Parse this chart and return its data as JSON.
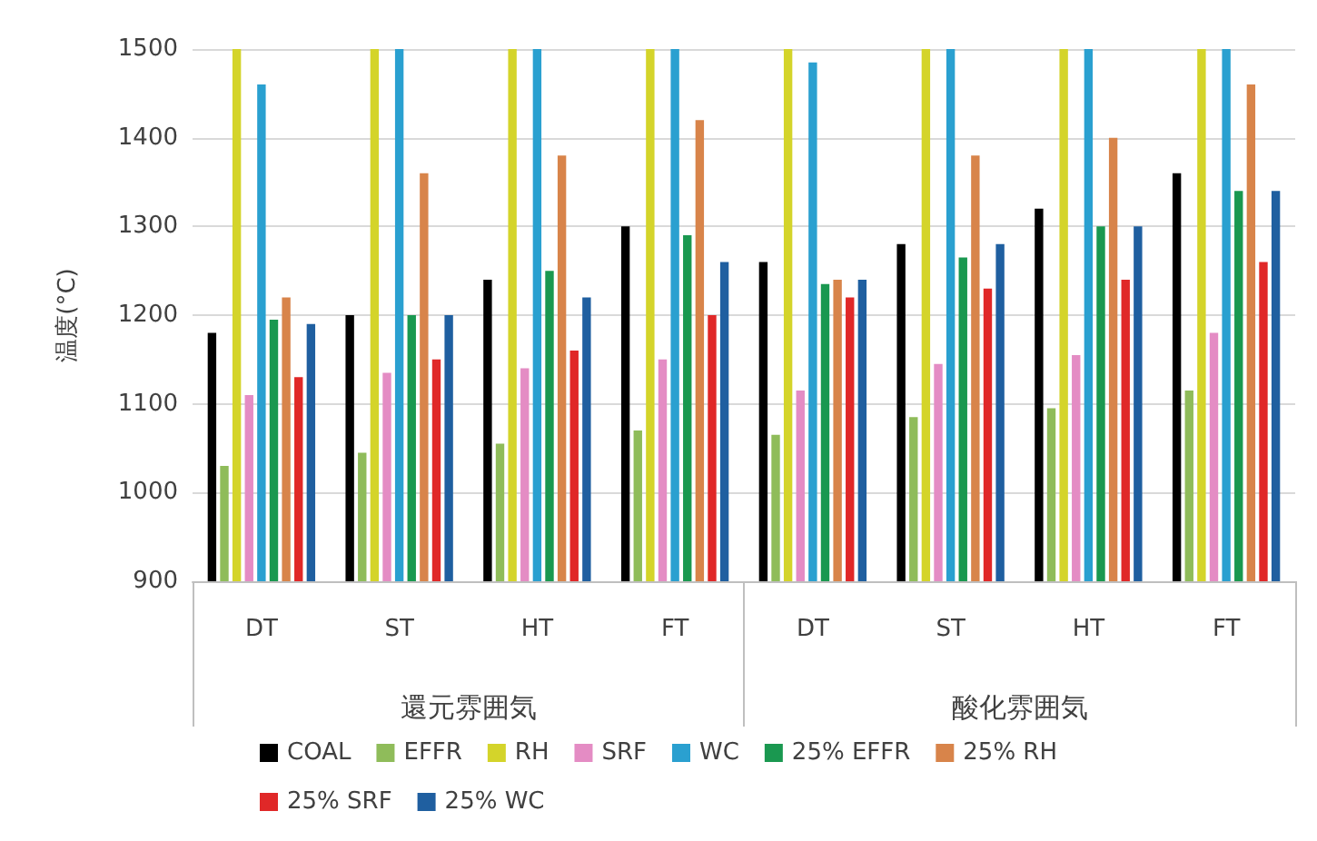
{
  "chart_data": {
    "type": "bar",
    "ylabel": "温度(°C)",
    "categories": [
      "DT",
      "ST",
      "HT",
      "FT",
      "DT",
      "ST",
      "HT",
      "FT"
    ],
    "annotations": [
      "還元雰囲気",
      "酸化雰囲気"
    ],
    "ylim": [
      900,
      1500
    ],
    "yticks": [
      900,
      1000,
      1100,
      1200,
      1300,
      1400,
      1500
    ],
    "grid": "y",
    "legend": "bottom",
    "series": [
      {
        "name": "COAL",
        "color": "#000000",
        "values": [
          1180,
          1200,
          1240,
          1300,
          1260,
          1280,
          1320,
          1360
        ]
      },
      {
        "name": "EFFR",
        "color": "#8fbc5a",
        "values": [
          1030,
          1045,
          1055,
          1070,
          1065,
          1085,
          1095,
          1115
        ]
      },
      {
        "name": "RH",
        "color": "#d4d42a",
        "values": [
          1500,
          1500,
          1500,
          1500,
          1500,
          1500,
          1500,
          1500
        ]
      },
      {
        "name": "SRF",
        "color": "#e48cc4",
        "values": [
          1110,
          1135,
          1140,
          1150,
          1115,
          1145,
          1155,
          1180
        ]
      },
      {
        "name": "WC",
        "color": "#2aa0d0",
        "values": [
          1460,
          1500,
          1500,
          1500,
          1485,
          1500,
          1500,
          1500
        ]
      },
      {
        "name": "25% EFFR",
        "color": "#1a9850",
        "values": [
          1195,
          1200,
          1250,
          1290,
          1235,
          1265,
          1300,
          1340
        ]
      },
      {
        "name": "25% RH",
        "color": "#d8844a",
        "values": [
          1220,
          1360,
          1380,
          1420,
          1240,
          1380,
          1400,
          1460
        ]
      },
      {
        "name": "25% SRF",
        "color": "#e02828",
        "values": [
          1130,
          1150,
          1160,
          1200,
          1220,
          1230,
          1240,
          1260
        ]
      },
      {
        "name": "25% WC",
        "color": "#1f5fa0",
        "values": [
          1190,
          1200,
          1220,
          1260,
          1240,
          1280,
          1300,
          1340
        ]
      }
    ]
  }
}
